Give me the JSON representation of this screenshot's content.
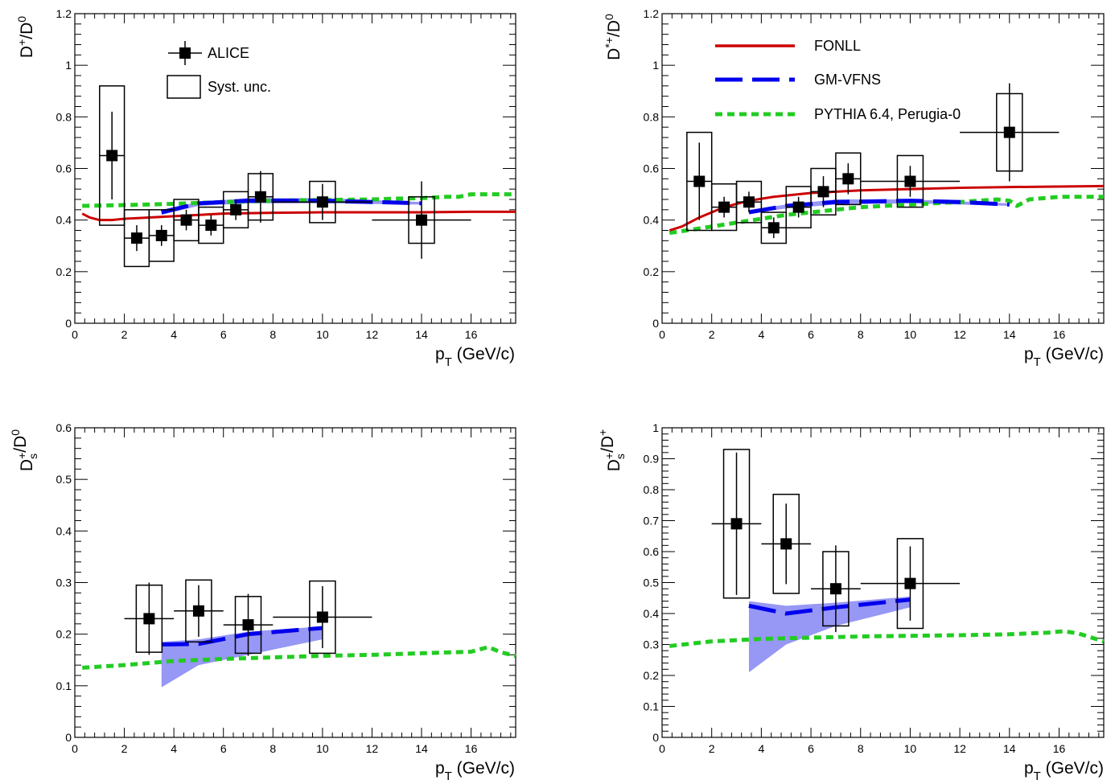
{
  "colors": {
    "fonll": "#cc0000",
    "gmvfns": "#0000ee",
    "gmvfns_band": "#8c8cf5",
    "pythia": "#22cc22",
    "data": "#000000"
  },
  "legend": {
    "alice": "ALICE",
    "syst": "Syst. unc.",
    "fonll": "FONLL",
    "gmvfns": "GM-VFNS",
    "pythia": "PYTHIA 6.4, Perugia-0"
  },
  "chart_data": [
    {
      "type": "scatter",
      "panel": "top-left",
      "xlabel": "p_T (GeV/c)",
      "ylabel": "D+/D0",
      "xlim": [
        0,
        17.8
      ],
      "ylim": [
        0,
        1.2
      ],
      "yticks": [
        "0",
        "0.2",
        "0.4",
        "0.6",
        "0.8",
        "1",
        "1.2"
      ],
      "xticks": [
        "0",
        "2",
        "4",
        "6",
        "8",
        "10",
        "12",
        "14",
        "16"
      ],
      "legend": [
        "ALICE",
        "Syst. unc."
      ],
      "data": [
        {
          "x": 1.5,
          "xlo": 1,
          "xhi": 2,
          "y": 0.65,
          "stat": 0.17,
          "syst": 0.27
        },
        {
          "x": 2.5,
          "xlo": 2,
          "xhi": 3,
          "y": 0.33,
          "stat": 0.05,
          "syst": 0.11
        },
        {
          "x": 3.5,
          "xlo": 3,
          "xhi": 4,
          "y": 0.34,
          "stat": 0.04,
          "syst": 0.1
        },
        {
          "x": 4.5,
          "xlo": 4,
          "xhi": 5,
          "y": 0.4,
          "stat": 0.04,
          "syst": 0.08
        },
        {
          "x": 5.5,
          "xlo": 5,
          "xhi": 6,
          "y": 0.38,
          "stat": 0.04,
          "syst": 0.07
        },
        {
          "x": 6.5,
          "xlo": 6,
          "xhi": 7,
          "y": 0.44,
          "stat": 0.04,
          "syst": 0.07
        },
        {
          "x": 7.5,
          "xlo": 7,
          "xhi": 8,
          "y": 0.49,
          "stat": 0.1,
          "syst": 0.09
        },
        {
          "x": 10,
          "xlo": 8,
          "xhi": 12,
          "y": 0.47,
          "stat": 0.07,
          "syst": 0.08
        },
        {
          "x": 14,
          "xlo": 12,
          "xhi": 16,
          "y": 0.4,
          "stat": 0.15,
          "syst": 0.09
        }
      ],
      "fonll": [
        [
          0.3,
          0.425
        ],
        [
          0.6,
          0.41
        ],
        [
          1,
          0.4
        ],
        [
          1.5,
          0.4
        ],
        [
          2,
          0.405
        ],
        [
          3,
          0.41
        ],
        [
          4,
          0.415
        ],
        [
          6,
          0.425
        ],
        [
          8,
          0.428
        ],
        [
          10,
          0.43
        ],
        [
          12,
          0.43
        ],
        [
          14,
          0.43
        ],
        [
          16,
          0.432
        ],
        [
          17.8,
          0.432
        ]
      ],
      "gmvfns": [
        [
          3.5,
          0.43
        ],
        [
          5,
          0.465
        ],
        [
          7,
          0.475
        ],
        [
          10,
          0.475
        ],
        [
          14,
          0.465
        ]
      ],
      "gmvfns_band": [
        [
          3.5,
          0.44,
          0.42
        ],
        [
          5,
          0.47,
          0.455
        ],
        [
          7,
          0.485,
          0.465
        ],
        [
          10,
          0.485,
          0.465
        ],
        [
          14,
          0.47,
          0.46
        ]
      ],
      "pythia": [
        [
          0.3,
          0.455
        ],
        [
          2,
          0.458
        ],
        [
          4,
          0.463
        ],
        [
          6,
          0.47
        ],
        [
          8,
          0.475
        ],
        [
          10,
          0.478
        ],
        [
          12,
          0.48
        ],
        [
          13,
          0.483
        ],
        [
          14,
          0.485
        ],
        [
          15,
          0.49
        ],
        [
          15.5,
          0.49
        ],
        [
          16,
          0.5
        ],
        [
          17.8,
          0.5
        ]
      ]
    },
    {
      "type": "scatter",
      "panel": "top-right",
      "xlabel": "p_T (GeV/c)",
      "ylabel": "D*+/D0",
      "xlim": [
        0,
        17.8
      ],
      "ylim": [
        0,
        1.2
      ],
      "yticks": [
        "0",
        "0.2",
        "0.4",
        "0.6",
        "0.8",
        "1",
        "1.2"
      ],
      "xticks": [
        "0",
        "2",
        "4",
        "6",
        "8",
        "10",
        "12",
        "14",
        "16"
      ],
      "legend": [
        "FONLL",
        "GM-VFNS",
        "PYTHIA 6.4, Perugia-0"
      ],
      "data": [
        {
          "x": 1.5,
          "xlo": 1,
          "xhi": 2,
          "y": 0.55,
          "stat": 0.15,
          "syst": 0.19
        },
        {
          "x": 2.5,
          "xlo": 2,
          "xhi": 3,
          "y": 0.45,
          "stat": 0.04,
          "syst": 0.09
        },
        {
          "x": 3.5,
          "xlo": 3,
          "xhi": 4,
          "y": 0.47,
          "stat": 0.04,
          "syst": 0.08
        },
        {
          "x": 4.5,
          "xlo": 4,
          "xhi": 5,
          "y": 0.37,
          "stat": 0.04,
          "syst": 0.06
        },
        {
          "x": 5.5,
          "xlo": 5,
          "xhi": 6,
          "y": 0.45,
          "stat": 0.04,
          "syst": 0.08
        },
        {
          "x": 6.5,
          "xlo": 6,
          "xhi": 7,
          "y": 0.51,
          "stat": 0.06,
          "syst": 0.09
        },
        {
          "x": 7.5,
          "xlo": 7,
          "xhi": 8,
          "y": 0.56,
          "stat": 0.06,
          "syst": 0.1
        },
        {
          "x": 10,
          "xlo": 8,
          "xhi": 12,
          "y": 0.55,
          "stat": 0.06,
          "syst": 0.1
        },
        {
          "x": 14,
          "xlo": 12,
          "xhi": 16,
          "y": 0.74,
          "stat": 0.19,
          "syst": 0.15
        }
      ],
      "fonll": [
        [
          0.3,
          0.36
        ],
        [
          0.8,
          0.375
        ],
        [
          1.5,
          0.41
        ],
        [
          2.5,
          0.45
        ],
        [
          3.5,
          0.475
        ],
        [
          4.5,
          0.49
        ],
        [
          6,
          0.505
        ],
        [
          8,
          0.515
        ],
        [
          10,
          0.52
        ],
        [
          12,
          0.525
        ],
        [
          14,
          0.528
        ],
        [
          16,
          0.53
        ],
        [
          17.8,
          0.532
        ]
      ],
      "gmvfns": [
        [
          3.5,
          0.43
        ],
        [
          5,
          0.455
        ],
        [
          7,
          0.47
        ],
        [
          10,
          0.475
        ],
        [
          12,
          0.47
        ],
        [
          14,
          0.46
        ]
      ],
      "gmvfns_band": [
        [
          3.5,
          0.44,
          0.425
        ],
        [
          5,
          0.46,
          0.445
        ],
        [
          7,
          0.48,
          0.46
        ],
        [
          10,
          0.48,
          0.465
        ],
        [
          14,
          0.465,
          0.455
        ]
      ],
      "pythia": [
        [
          0.3,
          0.35
        ],
        [
          1,
          0.36
        ],
        [
          2,
          0.375
        ],
        [
          3,
          0.39
        ],
        [
          4,
          0.405
        ],
        [
          5,
          0.42
        ],
        [
          6,
          0.43
        ],
        [
          7,
          0.44
        ],
        [
          8,
          0.45
        ],
        [
          10,
          0.46
        ],
        [
          12,
          0.47
        ],
        [
          13.5,
          0.48
        ],
        [
          14,
          0.475
        ],
        [
          14.3,
          0.455
        ],
        [
          14.8,
          0.48
        ],
        [
          16,
          0.49
        ],
        [
          17.8,
          0.49
        ]
      ]
    },
    {
      "type": "scatter",
      "panel": "bottom-left",
      "xlabel": "p_T (GeV/c)",
      "ylabel": "Ds+/D0",
      "xlim": [
        0,
        17.8
      ],
      "ylim": [
        0,
        0.6
      ],
      "yticks": [
        "0",
        "0.1",
        "0.2",
        "0.3",
        "0.4",
        "0.5",
        "0.6"
      ],
      "xticks": [
        "0",
        "2",
        "4",
        "6",
        "8",
        "10",
        "12",
        "14",
        "16"
      ],
      "data": [
        {
          "x": 3,
          "xlo": 2,
          "xhi": 4,
          "y": 0.23,
          "stat": 0.07,
          "syst": 0.065
        },
        {
          "x": 5,
          "xlo": 4,
          "xhi": 6,
          "y": 0.245,
          "stat": 0.05,
          "syst": 0.06
        },
        {
          "x": 7,
          "xlo": 6,
          "xhi": 8,
          "y": 0.218,
          "stat": 0.06,
          "syst": 0.055
        },
        {
          "x": 10,
          "xlo": 8,
          "xhi": 12,
          "y": 0.233,
          "stat": 0.06,
          "syst": 0.07
        }
      ],
      "gmvfns": [
        [
          3.5,
          0.18
        ],
        [
          5,
          0.181
        ],
        [
          7,
          0.2
        ],
        [
          10,
          0.212
        ]
      ],
      "gmvfns_band": [
        [
          3.5,
          0.185,
          0.097
        ],
        [
          5,
          0.19,
          0.14
        ],
        [
          7,
          0.205,
          0.16
        ],
        [
          10,
          0.215,
          0.19
        ]
      ],
      "pythia": [
        [
          0.3,
          0.135
        ],
        [
          2,
          0.14
        ],
        [
          4,
          0.148
        ],
        [
          6,
          0.152
        ],
        [
          8,
          0.155
        ],
        [
          10,
          0.158
        ],
        [
          12,
          0.16
        ],
        [
          14,
          0.163
        ],
        [
          16,
          0.166
        ],
        [
          16.7,
          0.175
        ],
        [
          17.2,
          0.165
        ],
        [
          17.8,
          0.158
        ]
      ]
    },
    {
      "type": "scatter",
      "panel": "bottom-right",
      "xlabel": "p_T (GeV/c)",
      "ylabel": "Ds+/D+",
      "xlim": [
        0,
        17.8
      ],
      "ylim": [
        0,
        1
      ],
      "yticks": [
        "0",
        "0.1",
        "0.2",
        "0.3",
        "0.4",
        "0.5",
        "0.6",
        "0.7",
        "0.8",
        "0.9",
        "1"
      ],
      "xticks": [
        "0",
        "2",
        "4",
        "6",
        "8",
        "10",
        "12",
        "14",
        "16"
      ],
      "data": [
        {
          "x": 3,
          "xlo": 2,
          "xhi": 4,
          "y": 0.69,
          "stat": 0.23,
          "syst": 0.24
        },
        {
          "x": 5,
          "xlo": 4,
          "xhi": 6,
          "y": 0.625,
          "stat": 0.13,
          "syst": 0.16
        },
        {
          "x": 7,
          "xlo": 6,
          "xhi": 8,
          "y": 0.48,
          "stat": 0.14,
          "syst": 0.12
        },
        {
          "x": 10,
          "xlo": 8,
          "xhi": 12,
          "y": 0.497,
          "stat": 0.12,
          "syst": 0.145
        }
      ],
      "gmvfns": [
        [
          3.5,
          0.425
        ],
        [
          5,
          0.4
        ],
        [
          7,
          0.42
        ],
        [
          10,
          0.445
        ]
      ],
      "gmvfns_band": [
        [
          3.5,
          0.44,
          0.21
        ],
        [
          5,
          0.425,
          0.3
        ],
        [
          7,
          0.435,
          0.36
        ],
        [
          10,
          0.455,
          0.42
        ]
      ],
      "pythia": [
        [
          0.3,
          0.295
        ],
        [
          2,
          0.31
        ],
        [
          4,
          0.318
        ],
        [
          6,
          0.322
        ],
        [
          8,
          0.326
        ],
        [
          10,
          0.328
        ],
        [
          12,
          0.33
        ],
        [
          14,
          0.333
        ],
        [
          15.5,
          0.338
        ],
        [
          16.2,
          0.343
        ],
        [
          16.8,
          0.335
        ],
        [
          17.8,
          0.31
        ]
      ]
    }
  ]
}
